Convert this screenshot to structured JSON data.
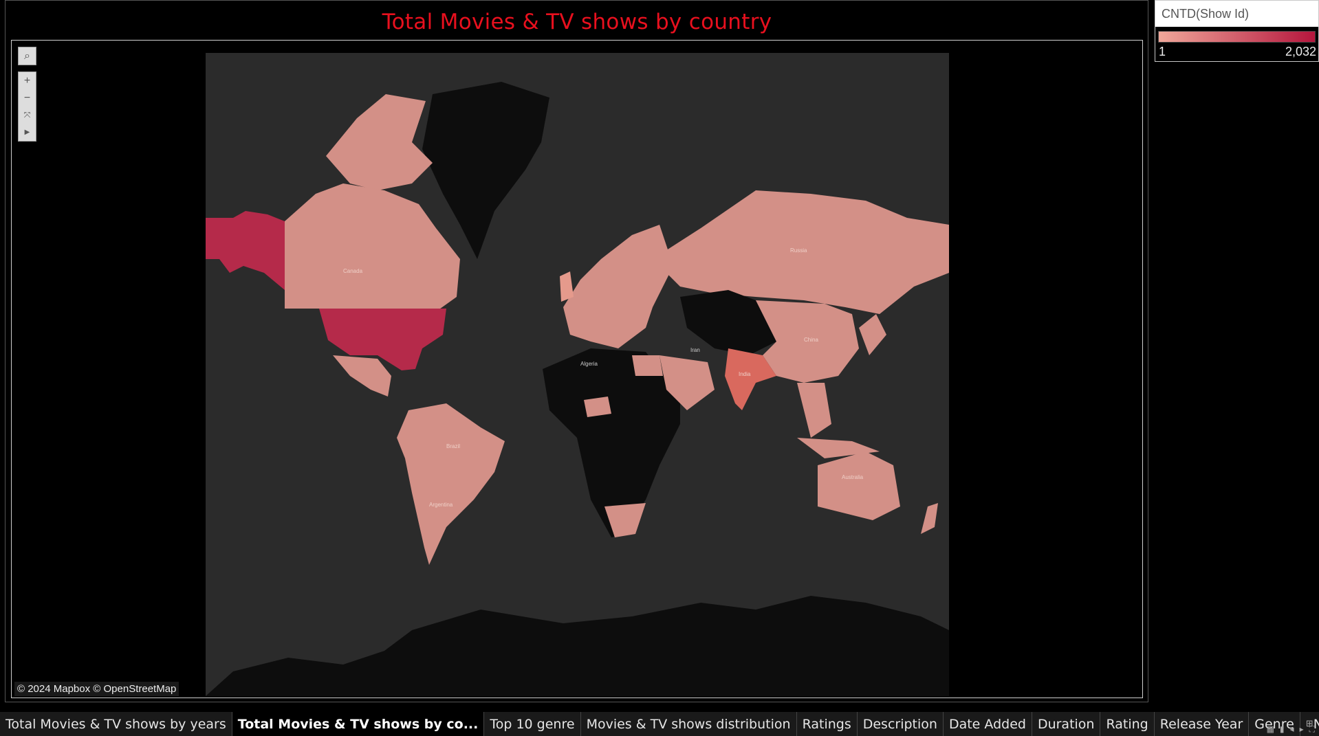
{
  "sheet": {
    "title": "Total Movies & TV shows by country"
  },
  "map": {
    "attribution": "© 2024 Mapbox © OpenStreetMap",
    "labels": {
      "canada": "Canada",
      "russia": "Russia",
      "china": "China",
      "iran": "Iran",
      "algeria": "Algeria",
      "india": "India",
      "brazil": "Brazil",
      "australia": "Australia",
      "argentina": "Argentina"
    },
    "colors": {
      "ocean": "#2b2b2b",
      "land_no_data": "#0d0d0d",
      "low": "#d39087",
      "high": "#b52a4a",
      "india": "#d9695e"
    },
    "toolbar": {
      "search_icon": "magnifier-icon",
      "zoom_in_icon": "plus-icon",
      "zoom_out_icon": "minus-icon",
      "reset_icon": "reset-axes-icon",
      "expand_icon": "play-icon"
    }
  },
  "legend": {
    "title": "CNTD(Show Id)",
    "min": "1",
    "max": "2,032",
    "color_low": "#f0a79a",
    "color_high": "#b5163d"
  },
  "tabs": [
    {
      "label": "Total Movies & TV shows by years"
    },
    {
      "label": "Total Movies & TV shows by co..."
    },
    {
      "label": "Top 10 genre"
    },
    {
      "label": "Movies & TV shows distribution"
    },
    {
      "label": "Ratings"
    },
    {
      "label": "Description"
    },
    {
      "label": "Date Added"
    },
    {
      "label": "Duration"
    },
    {
      "label": "Rating"
    },
    {
      "label": "Release Year"
    },
    {
      "label": "Genre"
    },
    {
      "label": "Net"
    }
  ],
  "active_tab": 1
}
